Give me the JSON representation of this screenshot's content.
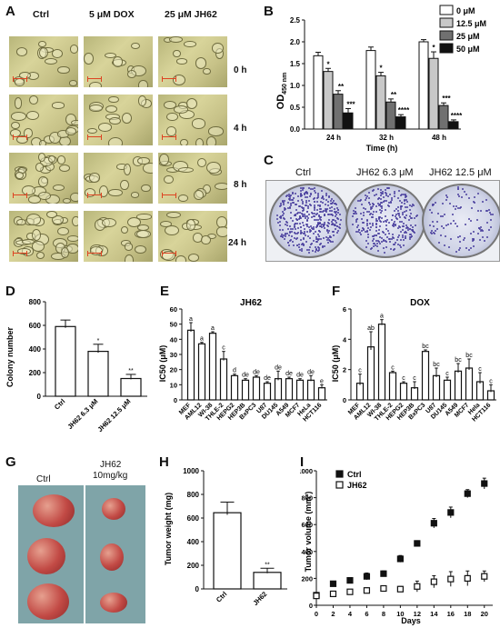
{
  "panels": {
    "A": "A",
    "B": "B",
    "C": "C",
    "D": "D",
    "E": "E",
    "F": "F",
    "G": "G",
    "H": "H",
    "I": "I"
  },
  "panelA": {
    "columns": [
      "Ctrl",
      "5 μM DOX",
      "25 μM JH62"
    ],
    "rows": [
      "0 h",
      "4 h",
      "8 h",
      "24 h"
    ]
  },
  "panelB": {
    "chart_data": {
      "type": "bar",
      "categories": [
        "24 h",
        "32 h",
        "48 h"
      ],
      "xlabel": "Time (h)",
      "ylabel_main": "OD",
      "ylabel_sub": "450 nm",
      "ylim": [
        0,
        2.5
      ],
      "yticks": [
        "0.0",
        "0.5",
        "1.0",
        "1.5",
        "2.0",
        "2.5"
      ],
      "legend_position": "top-right",
      "series": [
        {
          "name": "0 μM",
          "color": "#ffffff",
          "values": [
            1.68,
            1.8,
            2.0
          ],
          "err": [
            0.08,
            0.08,
            0.05
          ]
        },
        {
          "name": "12.5 μM",
          "color": "#c8c8c8",
          "values": [
            1.32,
            1.22,
            1.62
          ],
          "err": [
            0.07,
            0.08,
            0.15
          ]
        },
        {
          "name": "25 μM",
          "color": "#707070",
          "values": [
            0.8,
            0.62,
            0.54
          ],
          "err": [
            0.08,
            0.07,
            0.06
          ]
        },
        {
          "name": "50 μM",
          "color": "#111111",
          "values": [
            0.37,
            0.28,
            0.17
          ],
          "err": [
            0.1,
            0.05,
            0.04
          ]
        }
      ],
      "sig": [
        [
          "",
          "*",
          "**",
          "***"
        ],
        [
          "",
          "*",
          "**",
          "****"
        ],
        [
          "",
          "*",
          "***",
          "****"
        ]
      ]
    }
  },
  "panelC": {
    "labels": [
      "Ctrl",
      "JH62 6.3 μM",
      "JH62 12.5 μM"
    ]
  },
  "panelD": {
    "chart_data": {
      "type": "bar",
      "categories": [
        "Ctrl",
        "JH62 6.3 μM",
        "JH62 12.5 μM"
      ],
      "values": [
        590,
        380,
        150
      ],
      "err": [
        55,
        60,
        35
      ],
      "sig": [
        "",
        "*",
        "**"
      ],
      "ylabel": "Colony number",
      "ylim": [
        0,
        800
      ],
      "yticks": [
        "0",
        "200",
        "400",
        "600",
        "800"
      ]
    }
  },
  "panelE": {
    "chart_data": {
      "type": "bar",
      "title": "JH62",
      "ylabel": "IC50 (μM)",
      "ylim": [
        0,
        60
      ],
      "yticks": [
        "0",
        "10",
        "20",
        "30",
        "40",
        "50",
        "60"
      ],
      "categories": [
        "MEF",
        "AML12",
        "WI-38",
        "THLE-2",
        "HEPG2",
        "HEP3B",
        "BxPC3",
        "U87",
        "DU145",
        "A549",
        "MCF7",
        "HeLa",
        "HCT116"
      ],
      "values": [
        46,
        37,
        44,
        27,
        16,
        13,
        15,
        11,
        14,
        14,
        13,
        13,
        8
      ],
      "err": [
        5,
        1,
        1,
        5,
        1,
        1,
        1,
        1,
        5,
        1,
        1,
        3,
        2
      ],
      "letters": [
        "a",
        "a",
        "a",
        "c",
        "d",
        "de",
        "de",
        "de",
        "de",
        "de",
        "de",
        "de",
        "e"
      ]
    }
  },
  "panelF": {
    "chart_data": {
      "type": "bar",
      "title": "DOX",
      "ylabel": "IC50 (μM)",
      "ylim": [
        0,
        6
      ],
      "yticks": [
        "0",
        "2",
        "4",
        "6"
      ],
      "categories": [
        "MEF",
        "AML12",
        "WI-38",
        "THLE-2",
        "HEPG2",
        "HEP3B",
        "BxPC3",
        "U87",
        "DU145",
        "A549",
        "MCF7",
        "Hela",
        "HCT116"
      ],
      "values": [
        1.1,
        3.5,
        5.0,
        1.8,
        1.1,
        0.8,
        3.2,
        1.6,
        1.3,
        1.9,
        2.1,
        1.2,
        0.6
      ],
      "err": [
        0.6,
        1.0,
        0.3,
        0.1,
        0.1,
        0.4,
        0.1,
        0.5,
        0.2,
        0.5,
        0.6,
        0.6,
        0.4
      ],
      "letters": [
        "c",
        "ab",
        "a",
        "c",
        "c",
        "c",
        "bc",
        "bc",
        "c",
        "bc",
        "bc",
        "c",
        "c"
      ]
    }
  },
  "panelG": {
    "labels": [
      "Ctrl",
      "JH62",
      "10mg/kg"
    ]
  },
  "panelH": {
    "chart_data": {
      "type": "bar",
      "categories": [
        "Ctrl",
        "JH62"
      ],
      "values": [
        645,
        140
      ],
      "err": [
        90,
        35
      ],
      "sig": [
        "",
        "**"
      ],
      "ylabel": "Tumor weight (mg)",
      "ylim": [
        0,
        1000
      ],
      "yticks": [
        "0",
        "200",
        "400",
        "600",
        "800",
        "1000"
      ]
    }
  },
  "panelI": {
    "chart_data": {
      "type": "scatter",
      "xlabel": "Days",
      "ylabel": "Tumor volume (mm³)",
      "xlim": [
        0,
        21
      ],
      "ylim": [
        0,
        1000
      ],
      "xticks": [
        "0",
        "2",
        "4",
        "6",
        "8",
        "10",
        "12",
        "14",
        "16",
        "18",
        "20"
      ],
      "yticks": [
        "0",
        "200",
        "400",
        "600",
        "800",
        "1000"
      ],
      "legend_position": "top-left",
      "series": [
        {
          "name": "Ctrl",
          "marker": "filled-square",
          "x": [
            0,
            2,
            4,
            6,
            8,
            10,
            12,
            14,
            16,
            18,
            20
          ],
          "y": [
            75,
            160,
            185,
            215,
            235,
            345,
            460,
            610,
            690,
            830,
            905
          ],
          "err": [
            10,
            15,
            20,
            25,
            20,
            25,
            20,
            35,
            40,
            30,
            40
          ]
        },
        {
          "name": "JH62",
          "marker": "open-square",
          "x": [
            0,
            2,
            4,
            6,
            8,
            10,
            12,
            14,
            16,
            18,
            20
          ],
          "y": [
            70,
            85,
            100,
            110,
            125,
            120,
            140,
            175,
            195,
            200,
            215
          ],
          "err": [
            10,
            10,
            15,
            20,
            15,
            20,
            40,
            45,
            55,
            55,
            40
          ]
        }
      ]
    }
  }
}
